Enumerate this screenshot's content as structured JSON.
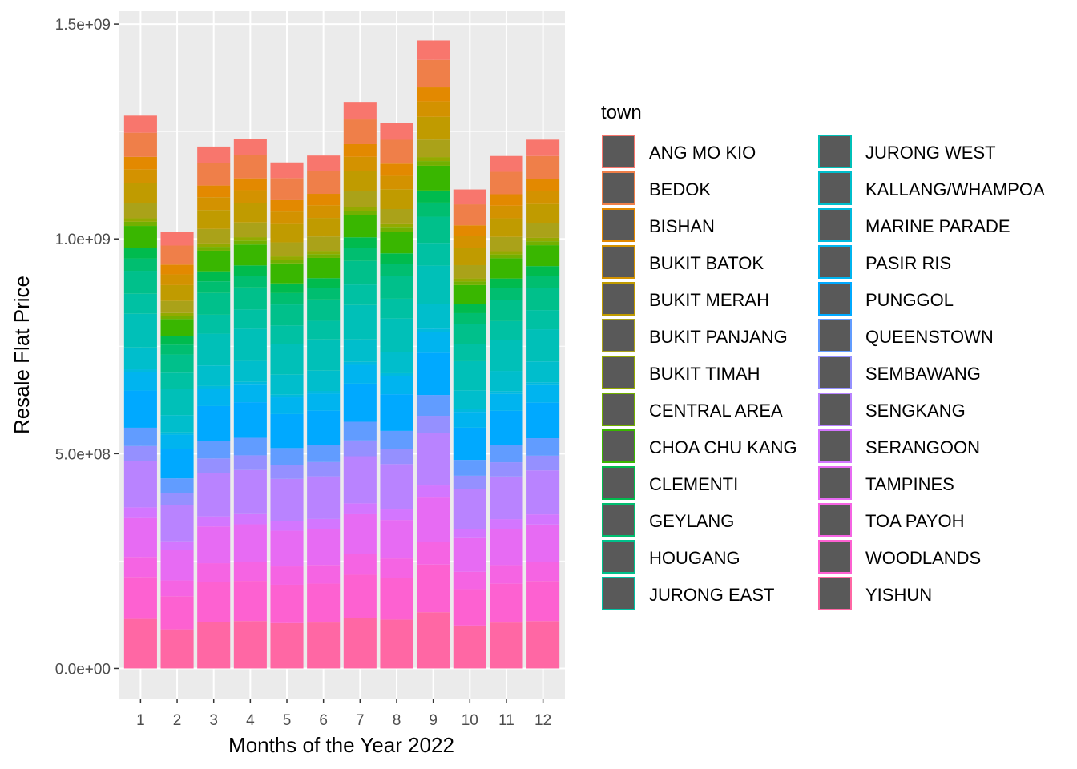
{
  "chart_data": {
    "type": "bar",
    "stacked": true,
    "xlabel": "Months of the Year 2022",
    "ylabel": "Resale Flat Price",
    "ylim": [
      -70000000,
      1530000000
    ],
    "y_ticks": [
      0,
      500000000,
      1000000000,
      1500000000
    ],
    "y_tick_labels": [
      "0.0e+00",
      "5.0e+08",
      "1.0e+09",
      "1.5e+09"
    ],
    "categories": [
      "1",
      "2",
      "3",
      "4",
      "5",
      "6",
      "7",
      "8",
      "9",
      "10",
      "11",
      "12"
    ],
    "totals": [
      1287000000,
      1016000000,
      1215000000,
      1233000000,
      1178000000,
      1194000000,
      1319000000,
      1270000000,
      1462000000,
      1115000000,
      1193000000,
      1231000000
    ],
    "legend": {
      "title": "town",
      "placement": "right",
      "items": [
        "ANG MO KIO",
        "BEDOK",
        "BISHAN",
        "BUKIT BATOK",
        "BUKIT MERAH",
        "BUKIT PANJANG",
        "BUKIT TIMAH",
        "CENTRAL AREA",
        "CHOA CHU KANG",
        "CLEMENTI",
        "GEYLANG",
        "HOUGANG",
        "JURONG EAST",
        "JURONG WEST",
        "KALLANG/WHAMPOA",
        "MARINE PARADE",
        "PASIR RIS",
        "PUNGGOL",
        "QUEENSTOWN",
        "SEMBAWANG",
        "SENGKANG",
        "SERANGOON",
        "TAMPINES",
        "TOA PAYOH",
        "WOODLANDS",
        "YISHUN"
      ]
    },
    "series_colors": [
      "#F8766D",
      "#EF7F49",
      "#E38900",
      "#D39200",
      "#C09B00",
      "#AAA219",
      "#93AA00",
      "#72B000",
      "#39B600",
      "#00BB4E",
      "#00BE70",
      "#00C08B",
      "#00C1A3",
      "#00C0B8",
      "#00BECC",
      "#00BADE",
      "#00B4EF",
      "#00A9FF",
      "#619CFF",
      "#9590FF",
      "#B983FF",
      "#D376FF",
      "#E76BF3",
      "#F564E3",
      "#FD61D1",
      "#FF67A4"
    ],
    "series_shares": [
      0.029,
      0.041,
      0.021,
      0.023,
      0.034,
      0.026,
      0.006,
      0.007,
      0.037,
      0.018,
      0.021,
      0.039,
      0.034,
      0.057,
      0.037,
      0.005,
      0.031,
      0.063,
      0.031,
      0.026,
      0.078,
      0.018,
      0.066,
      0.034,
      0.071,
      0.084
    ],
    "panel_background": "#EBEBEB",
    "grid": true
  }
}
